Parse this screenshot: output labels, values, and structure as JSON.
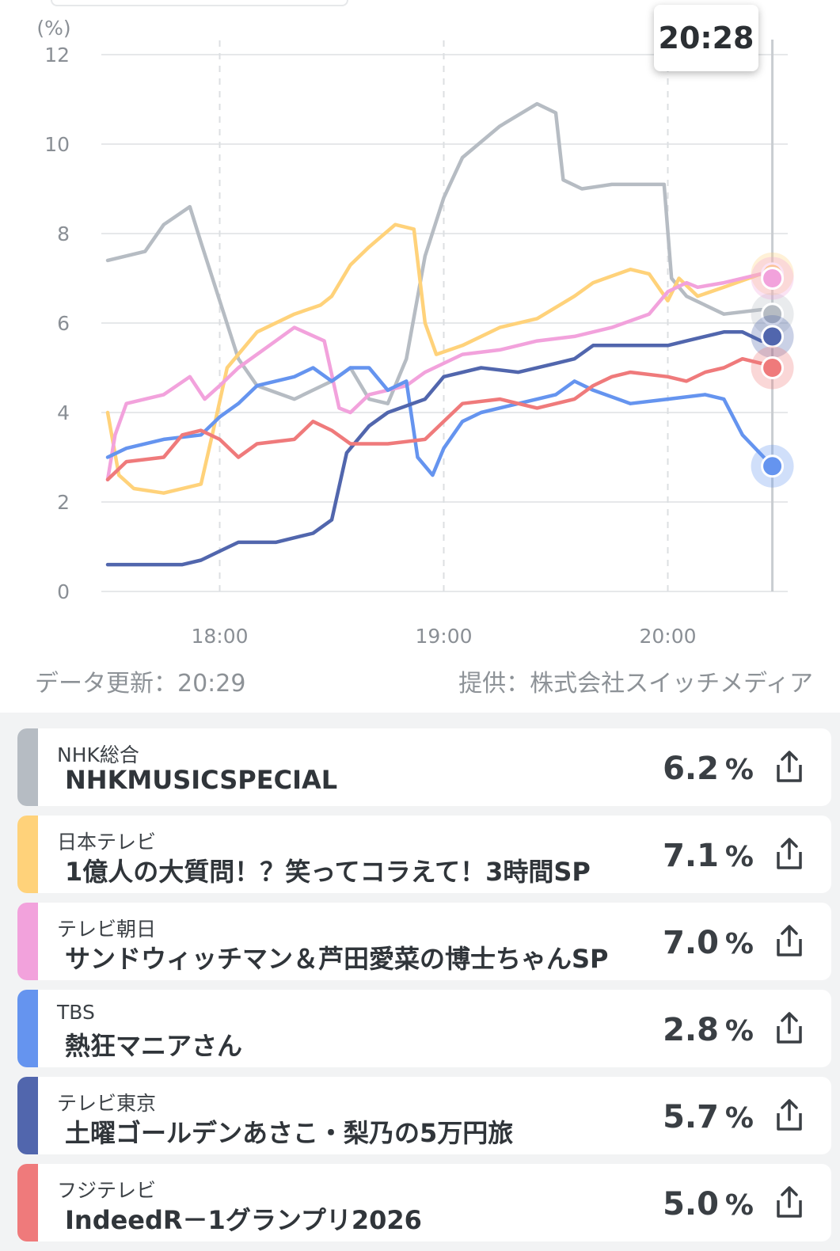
{
  "chart_data": {
    "type": "line",
    "unit_label": "(%)",
    "ylim": [
      0,
      12
    ],
    "yticks": [
      0,
      2,
      4,
      6,
      8,
      10,
      12
    ],
    "xlim": [
      "17:30",
      "20:30"
    ],
    "xticks": [
      "18:00",
      "19:00",
      "20:00"
    ],
    "cursor_time": "20:28",
    "grid": true,
    "series": [
      {
        "name": "NHK総合",
        "color": "#b6bcc3",
        "points": [
          [
            "17:30",
            7.4
          ],
          [
            "17:40",
            7.6
          ],
          [
            "17:45",
            8.2
          ],
          [
            "17:52",
            8.6
          ],
          [
            "17:55",
            7.8
          ],
          [
            "18:00",
            6.5
          ],
          [
            "18:05",
            5.2
          ],
          [
            "18:10",
            4.6
          ],
          [
            "18:20",
            4.3
          ],
          [
            "18:30",
            4.7
          ],
          [
            "18:35",
            5.0
          ],
          [
            "18:40",
            4.3
          ],
          [
            "18:45",
            4.2
          ],
          [
            "18:50",
            5.2
          ],
          [
            "18:55",
            7.5
          ],
          [
            "19:00",
            8.8
          ],
          [
            "19:05",
            9.7
          ],
          [
            "19:15",
            10.4
          ],
          [
            "19:25",
            10.9
          ],
          [
            "19:30",
            10.7
          ],
          [
            "19:32",
            9.2
          ],
          [
            "19:37",
            9.0
          ],
          [
            "19:45",
            9.1
          ],
          [
            "19:55",
            9.1
          ],
          [
            "19:59",
            9.1
          ],
          [
            "20:01",
            7.0
          ],
          [
            "20:05",
            6.6
          ],
          [
            "20:15",
            6.2
          ],
          [
            "20:25",
            6.3
          ],
          [
            "20:28",
            6.2
          ]
        ]
      },
      {
        "name": "日本テレビ",
        "color": "#ffd27a",
        "points": [
          [
            "17:30",
            4.0
          ],
          [
            "17:33",
            2.6
          ],
          [
            "17:37",
            2.3
          ],
          [
            "17:45",
            2.2
          ],
          [
            "17:55",
            2.4
          ],
          [
            "17:58",
            3.5
          ],
          [
            "18:02",
            5.0
          ],
          [
            "18:10",
            5.8
          ],
          [
            "18:20",
            6.2
          ],
          [
            "18:27",
            6.4
          ],
          [
            "18:30",
            6.6
          ],
          [
            "18:35",
            7.3
          ],
          [
            "18:40",
            7.7
          ],
          [
            "18:47",
            8.2
          ],
          [
            "18:52",
            8.1
          ],
          [
            "18:55",
            6.0
          ],
          [
            "18:58",
            5.3
          ],
          [
            "19:05",
            5.5
          ],
          [
            "19:15",
            5.9
          ],
          [
            "19:25",
            6.1
          ],
          [
            "19:35",
            6.6
          ],
          [
            "19:40",
            6.9
          ],
          [
            "19:50",
            7.2
          ],
          [
            "19:55",
            7.1
          ],
          [
            "20:00",
            6.5
          ],
          [
            "20:03",
            7.0
          ],
          [
            "20:08",
            6.6
          ],
          [
            "20:15",
            6.8
          ],
          [
            "20:25",
            7.1
          ],
          [
            "20:28",
            7.1
          ]
        ]
      },
      {
        "name": "テレビ朝日",
        "color": "#f2a2dc",
        "points": [
          [
            "17:30",
            2.5
          ],
          [
            "17:32",
            3.5
          ],
          [
            "17:35",
            4.2
          ],
          [
            "17:45",
            4.4
          ],
          [
            "17:52",
            4.8
          ],
          [
            "17:56",
            4.3
          ],
          [
            "18:00",
            4.6
          ],
          [
            "18:05",
            5.0
          ],
          [
            "18:15",
            5.6
          ],
          [
            "18:20",
            5.9
          ],
          [
            "18:28",
            5.6
          ],
          [
            "18:32",
            4.1
          ],
          [
            "18:35",
            4.0
          ],
          [
            "18:40",
            4.4
          ],
          [
            "18:45",
            4.5
          ],
          [
            "18:50",
            4.6
          ],
          [
            "18:55",
            4.9
          ],
          [
            "19:00",
            5.1
          ],
          [
            "19:05",
            5.3
          ],
          [
            "19:15",
            5.4
          ],
          [
            "19:25",
            5.6
          ],
          [
            "19:35",
            5.7
          ],
          [
            "19:45",
            5.9
          ],
          [
            "19:55",
            6.2
          ],
          [
            "20:00",
            6.7
          ],
          [
            "20:05",
            6.9
          ],
          [
            "20:08",
            6.8
          ],
          [
            "20:15",
            6.9
          ],
          [
            "20:25",
            7.1
          ],
          [
            "20:28",
            7.0
          ]
        ]
      },
      {
        "name": "TBS",
        "color": "#6594ef",
        "points": [
          [
            "17:30",
            3.0
          ],
          [
            "17:35",
            3.2
          ],
          [
            "17:45",
            3.4
          ],
          [
            "17:55",
            3.5
          ],
          [
            "18:00",
            3.9
          ],
          [
            "18:05",
            4.2
          ],
          [
            "18:10",
            4.6
          ],
          [
            "18:20",
            4.8
          ],
          [
            "18:25",
            5.0
          ],
          [
            "18:30",
            4.7
          ],
          [
            "18:35",
            5.0
          ],
          [
            "18:40",
            5.0
          ],
          [
            "18:45",
            4.5
          ],
          [
            "18:50",
            4.7
          ],
          [
            "18:53",
            3.0
          ],
          [
            "18:57",
            2.6
          ],
          [
            "19:00",
            3.2
          ],
          [
            "19:05",
            3.8
          ],
          [
            "19:10",
            4.0
          ],
          [
            "19:20",
            4.2
          ],
          [
            "19:30",
            4.4
          ],
          [
            "19:35",
            4.7
          ],
          [
            "19:40",
            4.5
          ],
          [
            "19:50",
            4.2
          ],
          [
            "20:00",
            4.3
          ],
          [
            "20:10",
            4.4
          ],
          [
            "20:15",
            4.3
          ],
          [
            "20:20",
            3.5
          ],
          [
            "20:28",
            2.8
          ]
        ]
      },
      {
        "name": "テレビ東京",
        "color": "#5166ad",
        "points": [
          [
            "17:30",
            0.6
          ],
          [
            "17:40",
            0.6
          ],
          [
            "17:50",
            0.6
          ],
          [
            "17:55",
            0.7
          ],
          [
            "18:00",
            0.9
          ],
          [
            "18:05",
            1.1
          ],
          [
            "18:15",
            1.1
          ],
          [
            "18:25",
            1.3
          ],
          [
            "18:30",
            1.6
          ],
          [
            "18:34",
            3.1
          ],
          [
            "18:40",
            3.7
          ],
          [
            "18:45",
            4.0
          ],
          [
            "18:55",
            4.3
          ],
          [
            "19:00",
            4.8
          ],
          [
            "19:10",
            5.0
          ],
          [
            "19:20",
            4.9
          ],
          [
            "19:30",
            5.1
          ],
          [
            "19:35",
            5.2
          ],
          [
            "19:40",
            5.5
          ],
          [
            "19:50",
            5.5
          ],
          [
            "20:00",
            5.5
          ],
          [
            "20:05",
            5.6
          ],
          [
            "20:15",
            5.8
          ],
          [
            "20:20",
            5.8
          ],
          [
            "20:25",
            5.6
          ],
          [
            "20:28",
            5.7
          ]
        ]
      },
      {
        "name": "フジテレビ",
        "color": "#ef7a7b",
        "points": [
          [
            "17:30",
            2.5
          ],
          [
            "17:35",
            2.9
          ],
          [
            "17:45",
            3.0
          ],
          [
            "17:50",
            3.5
          ],
          [
            "17:55",
            3.6
          ],
          [
            "18:00",
            3.4
          ],
          [
            "18:05",
            3.0
          ],
          [
            "18:10",
            3.3
          ],
          [
            "18:20",
            3.4
          ],
          [
            "18:25",
            3.8
          ],
          [
            "18:30",
            3.6
          ],
          [
            "18:35",
            3.3
          ],
          [
            "18:45",
            3.3
          ],
          [
            "18:55",
            3.4
          ],
          [
            "19:00",
            3.8
          ],
          [
            "19:05",
            4.2
          ],
          [
            "19:15",
            4.3
          ],
          [
            "19:25",
            4.1
          ],
          [
            "19:35",
            4.3
          ],
          [
            "19:40",
            4.6
          ],
          [
            "19:45",
            4.8
          ],
          [
            "19:50",
            4.9
          ],
          [
            "20:00",
            4.8
          ],
          [
            "20:05",
            4.7
          ],
          [
            "20:10",
            4.9
          ],
          [
            "20:15",
            5.0
          ],
          [
            "20:20",
            5.2
          ],
          [
            "20:25",
            5.1
          ],
          [
            "20:28",
            5.0
          ]
        ]
      }
    ]
  },
  "tooltip": {
    "time": "20:28"
  },
  "footer": {
    "updated": "データ更新：20:29",
    "provider": "提供：株式会社スイッチメディア"
  },
  "list": [
    {
      "station": "NHK総合",
      "program": "NHKMUSICSPECIAL",
      "rating": "6.2",
      "unit": "%",
      "color": "#b6bcc3"
    },
    {
      "station": "日本テレビ",
      "program": "1億人の大質問！？笑ってコラえて！3時間SP",
      "rating": "7.1",
      "unit": "%",
      "color": "#ffd27a"
    },
    {
      "station": "テレビ朝日",
      "program": "サンドウィッチマン＆芦田愛菜の博士ちゃんSP",
      "rating": "7.0",
      "unit": "%",
      "color": "#f2a2dc"
    },
    {
      "station": "TBS",
      "program": "熱狂マニアさん",
      "rating": "2.8",
      "unit": "%",
      "color": "#6594ef"
    },
    {
      "station": "テレビ東京",
      "program": "土曜ゴールデンあさこ・梨乃の5万円旅",
      "rating": "5.7",
      "unit": "%",
      "color": "#5166ad"
    },
    {
      "station": "フジテレビ",
      "program": "IndeedR－1グランプリ2026",
      "rating": "5.0",
      "unit": "%",
      "color": "#ef7a7b"
    }
  ],
  "icons": {
    "share": "share-icon"
  }
}
